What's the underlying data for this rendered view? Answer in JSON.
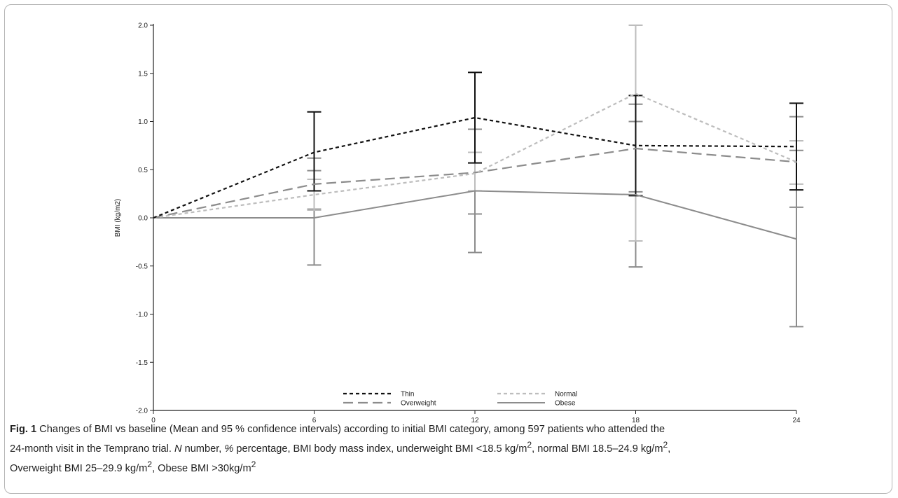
{
  "chart_data": {
    "type": "line",
    "ylabel": "BMI (kg/m2)",
    "xlabel": "",
    "x": [
      0,
      6,
      12,
      18,
      24
    ],
    "x_ticks": [
      "0",
      "6",
      "12",
      "18",
      "24"
    ],
    "y_ticks": [
      "2.0",
      "1.5",
      "1.0",
      "0.5",
      "0.0",
      "-0.5",
      "-1.0",
      "-1.5",
      "-2.0"
    ],
    "y_tick_values": [
      2.0,
      1.5,
      1.0,
      0.5,
      0.0,
      -0.5,
      -1.0,
      -1.5,
      -2.0
    ],
    "xlim": [
      0,
      24
    ],
    "ylim": [
      -2.0,
      2.0
    ],
    "grid": false,
    "legend_position": "bottom-center",
    "series": [
      {
        "name": "Thin",
        "color": "#111111",
        "dash": "short-dash",
        "values": [
          0.0,
          0.68,
          1.04,
          0.75,
          0.74
        ],
        "ci_low": [
          0.0,
          0.28,
          0.57,
          0.23,
          0.29
        ],
        "ci_high": [
          0.0,
          1.1,
          1.51,
          1.27,
          1.19
        ]
      },
      {
        "name": "Normal",
        "color": "#bdbdbd",
        "dash": "short-dash",
        "values": [
          0.0,
          0.24,
          0.46,
          1.29,
          0.58
        ],
        "ci_low": [
          0.0,
          0.08,
          0.28,
          -0.24,
          0.35
        ],
        "ci_high": [
          0.0,
          0.4,
          0.68,
          2.0,
          0.8
        ]
      },
      {
        "name": "Overweight",
        "color": "#8c8c8c",
        "dash": "long-dash",
        "values": [
          0.0,
          0.35,
          0.47,
          0.72,
          0.58
        ],
        "ci_low": [
          0.0,
          0.09,
          0.04,
          0.27,
          0.11
        ],
        "ci_high": [
          0.0,
          0.62,
          0.92,
          1.18,
          1.05
        ]
      },
      {
        "name": "Obese",
        "color": "#8c8c8c",
        "dash": "solid",
        "values": [
          0.0,
          0.0,
          0.28,
          0.24,
          -0.22
        ],
        "ci_low": [
          0.0,
          -0.49,
          -0.36,
          -0.51,
          -1.13
        ],
        "ci_high": [
          0.0,
          0.49,
          0.92,
          1.0,
          0.7
        ]
      }
    ]
  },
  "caption": {
    "label": "Fig. 1",
    "line1": "Changes of BMI vs baseline (Mean and 95 % confidence intervals) according to initial BMI category, among 597 patients who attended the",
    "line2a": "24-month visit in the Temprano trial.",
    "n_sym": "N",
    "n_text": "number,",
    "pct_sym": "%",
    "pct_text": "percentage, BMI body mass index, underweight BMI <18.5 kg/m",
    "sup1": "2",
    "line2b": ", normal BMI 18.5–24.9 kg/m",
    "sup2": "2",
    "line2c": ",",
    "line3a": "Overweight BMI 25–29.9 kg/m",
    "sup3": "2",
    "line3b": ", Obese BMI >30kg/m",
    "sup4": "2"
  }
}
